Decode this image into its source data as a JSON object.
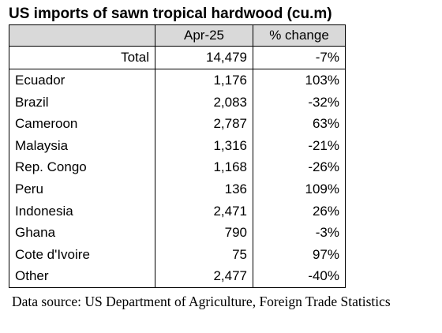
{
  "title": "US imports of sawn tropical hardwood (cu.m)",
  "chart_data": {
    "type": "table",
    "title": "US imports of sawn tropical hardwood (cu.m)",
    "columns": [
      "",
      "Apr-25",
      "% change"
    ],
    "total": {
      "label": "Total",
      "value": "14,479",
      "change": "-7%"
    },
    "rows": [
      {
        "country": "Ecuador",
        "value": "1,176",
        "change": "103%"
      },
      {
        "country": "Brazil",
        "value": "2,083",
        "change": "-32%"
      },
      {
        "country": "Cameroon",
        "value": "2,787",
        "change": "63%"
      },
      {
        "country": "Malaysia",
        "value": "1,316",
        "change": "-21%"
      },
      {
        "country": "Rep. Congo",
        "value": "1,168",
        "change": "-26%"
      },
      {
        "country": "Peru",
        "value": "136",
        "change": "109%"
      },
      {
        "country": "Indonesia",
        "value": "2,471",
        "change": "26%"
      },
      {
        "country": "Ghana",
        "value": "790",
        "change": "-3%"
      },
      {
        "country": "Cote d'Ivoire",
        "value": "75",
        "change": "97%"
      },
      {
        "country": "Other",
        "value": "2,477",
        "change": "-40%"
      }
    ]
  },
  "source": "Data source: US Department of Agriculture, Foreign Trade Statistics",
  "colors": {
    "header_background": "#d9d9d9",
    "border": "#000000"
  }
}
